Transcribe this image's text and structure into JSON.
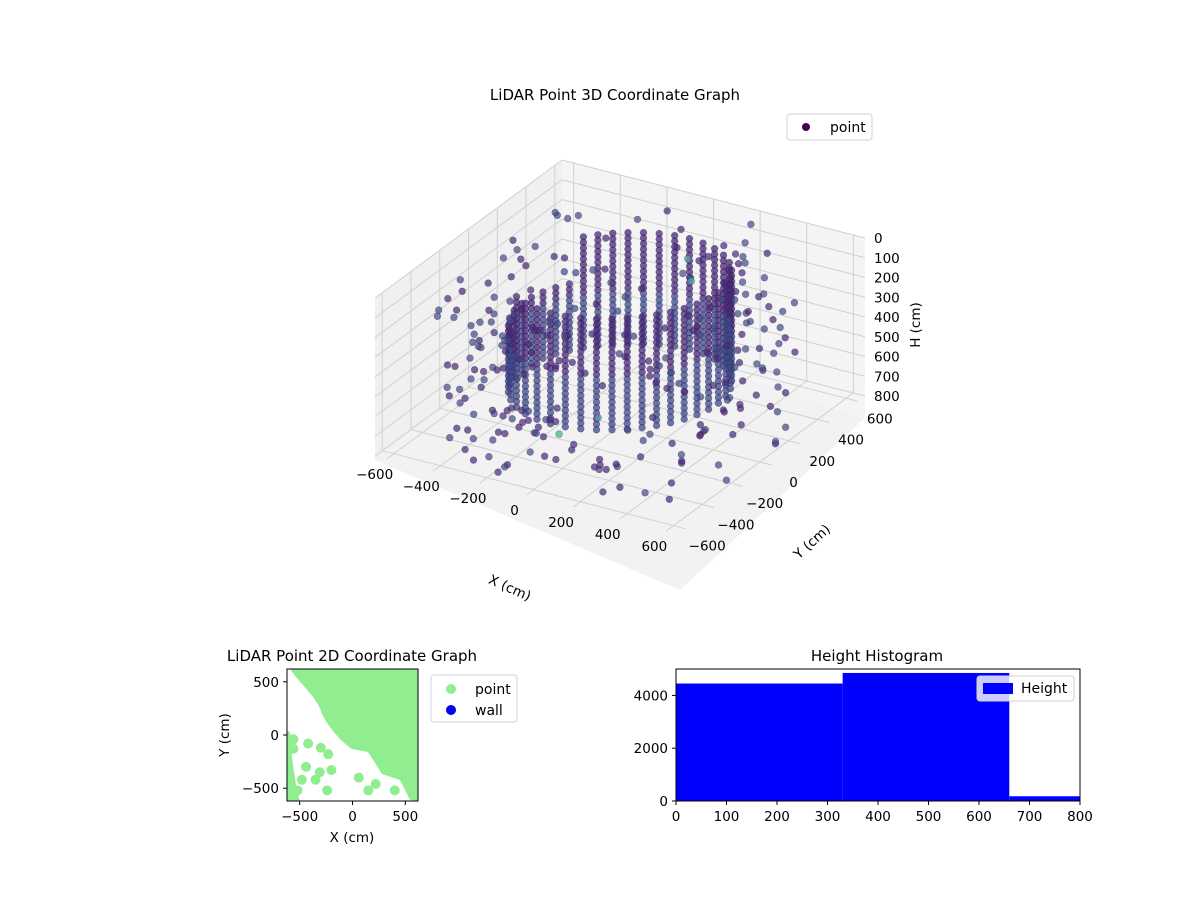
{
  "chart_data": [
    {
      "type": "scatter",
      "projection": "3d",
      "title": "LiDAR Point 3D Coordinate Graph",
      "xlabel": "X (cm)",
      "ylabel": "Y (cm)",
      "zlabel": "H (cm)",
      "xlim": [
        -650,
        650
      ],
      "ylim": [
        -650,
        650
      ],
      "zlim": [
        0,
        800
      ],
      "z_inverted": true,
      "xticks": [
        -600,
        -400,
        -200,
        0,
        200,
        400,
        600
      ],
      "yticks": [
        -600,
        -400,
        -200,
        0,
        200,
        400,
        600
      ],
      "zticks": [
        0,
        100,
        200,
        300,
        400,
        500,
        600,
        700,
        800
      ],
      "legend": [
        {
          "label": "point",
          "color": "#440154"
        }
      ],
      "legend_position": "upper right",
      "colormap": "viridis",
      "grid": true,
      "point_colors": {
        "main": "#482878",
        "mid": "#3e4a89",
        "outlier": "#35b779"
      }
    },
    {
      "type": "scatter",
      "title": "LiDAR Point 2D Coordinate Graph",
      "xlabel": "X (cm)",
      "ylabel": "Y (cm)",
      "xlim": [
        -620,
        620
      ],
      "ylim": [
        -620,
        620
      ],
      "xticks": [
        -500,
        0,
        500
      ],
      "yticks": [
        -500,
        0,
        500
      ],
      "series": [
        {
          "name": "point",
          "color": "#90ee90"
        },
        {
          "name": "wall",
          "color": "#0000ff"
        }
      ],
      "legend_position": "outside right"
    },
    {
      "type": "bar",
      "title": "Height Histogram",
      "xlim": [
        0,
        800
      ],
      "ylim": [
        0,
        5000
      ],
      "xticks": [
        0,
        100,
        200,
        300,
        400,
        500,
        600,
        700,
        800
      ],
      "yticks": [
        0,
        2000,
        4000
      ],
      "bins": [
        [
          0,
          330
        ],
        [
          330,
          660
        ],
        [
          660,
          800
        ]
      ],
      "values": [
        4450,
        4850,
        180
      ],
      "series": [
        {
          "name": "Height",
          "color": "#0000ff"
        }
      ],
      "legend_position": "upper right"
    }
  ]
}
